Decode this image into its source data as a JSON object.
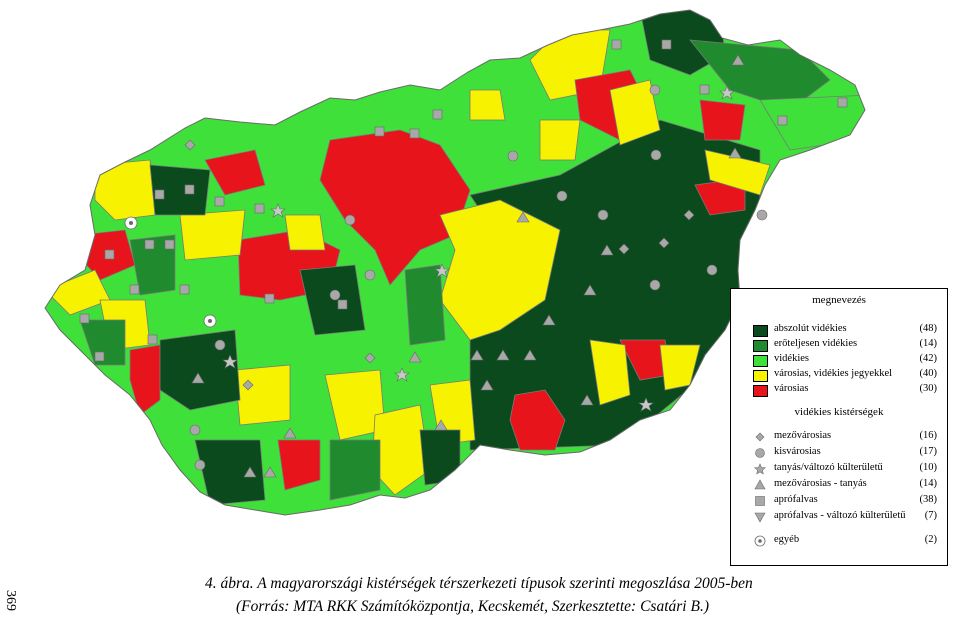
{
  "page_number": "369",
  "caption": {
    "line1": "4. ábra. A magyarországi kistérségek térszerkezeti típusok szerinti megoszlása 2005-ben",
    "line2": "(Forrás: MTA RKK Számítóközpontja, Kecskemét, Szerkesztette: Csatári B.)"
  },
  "legend": {
    "title": "megnevezés",
    "categories": [
      {
        "label": "abszolút vidékies",
        "count": "(48)",
        "color": "#0b4a1c"
      },
      {
        "label": "erőteljesen vidékies",
        "count": "(14)",
        "color": "#1f8a2e"
      },
      {
        "label": "vidékies",
        "count": "(42)",
        "color": "#3fe03a"
      },
      {
        "label": "városias, vidékies jegyekkel",
        "count": "(40)",
        "color": "#f7f200"
      },
      {
        "label": "városias",
        "count": "(30)",
        "color": "#e8141b"
      }
    ],
    "subtitle": "vidékies kistérségek",
    "symbols": [
      {
        "label": "mezővárosias",
        "count": "(16)",
        "icon": "diamond"
      },
      {
        "label": "kisvárosias",
        "count": "(17)",
        "icon": "circle"
      },
      {
        "label": "tanyás/változó külterületű",
        "count": "(10)",
        "icon": "star"
      },
      {
        "label": "mezővárosias - tanyás",
        "count": "(14)",
        "icon": "triangle-up"
      },
      {
        "label": "aprófalvas",
        "count": "(38)",
        "icon": "square"
      },
      {
        "label": "aprófalvas - változó külterületű",
        "count": "(7)",
        "icon": "triangle-down"
      },
      {
        "label": "egyéb",
        "count": "(2)",
        "icon": "ring-dot"
      }
    ]
  }
}
